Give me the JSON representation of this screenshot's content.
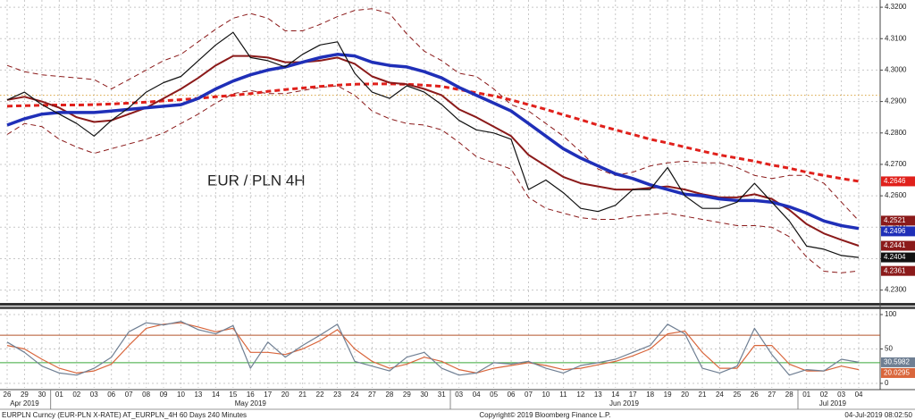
{
  "chart_data": [
    {
      "type": "line",
      "title": "EUR / PLN 4H",
      "title_color": "#c0282d",
      "categories": [
        "26",
        "29",
        "30",
        "01",
        "02",
        "03",
        "06",
        "07",
        "08",
        "09",
        "10",
        "13",
        "14",
        "15",
        "16",
        "17",
        "20",
        "21",
        "22",
        "23",
        "24",
        "27",
        "28",
        "29",
        "30",
        "31",
        "03",
        "04",
        "05",
        "06",
        "07",
        "10",
        "11",
        "12",
        "13",
        "14",
        "17",
        "18",
        "19",
        "20",
        "21",
        "24",
        "25",
        "26",
        "27",
        "28",
        "01",
        "02",
        "03",
        "04"
      ],
      "month_groups": [
        {
          "name": "Apr 2019",
          "count": 3
        },
        {
          "name": "May 2019",
          "count": 23
        },
        {
          "name": "Jun 2019",
          "count": 20
        },
        {
          "name": "Jul 2019",
          "count": 4
        }
      ],
      "ylim": [
        4.2262,
        4.3223
      ],
      "yticks": [
        {
          "value": 4.23,
          "label": "4.2300"
        },
        {
          "value": 4.24,
          "label": "4.2400"
        },
        {
          "value": 4.25,
          "label": "4.2500"
        },
        {
          "value": 4.26,
          "label": "4.2600"
        },
        {
          "value": 4.27,
          "label": "4.2700"
        },
        {
          "value": 4.28,
          "label": "4.2800"
        },
        {
          "value": 4.29,
          "label": "4.2900"
        },
        {
          "value": 4.3,
          "label": "4.3000"
        },
        {
          "value": 4.31,
          "label": "4.3100"
        },
        {
          "value": 4.32,
          "label": "4.3200"
        }
      ],
      "grid": true,
      "hlines": [
        {
          "value": 4.292,
          "color": "#d9a441",
          "style": "dotted"
        }
      ],
      "series": [
        {
          "color": "#8b1a1a",
          "width": 1,
          "style": "dashed",
          "values": [
            4.3015,
            4.2995,
            4.2985,
            4.298,
            4.2975,
            4.297,
            4.294,
            4.297,
            4.3,
            4.303,
            4.305,
            4.309,
            4.313,
            4.3165,
            4.318,
            4.3165,
            4.3125,
            4.3125,
            4.3145,
            4.317,
            4.319,
            4.3195,
            4.318,
            4.3115,
            4.306,
            4.303,
            4.299,
            4.298,
            4.294,
            4.289,
            4.287,
            4.283,
            4.279,
            4.274,
            4.2685,
            4.2665,
            4.2675,
            4.2695,
            4.2705,
            4.271,
            4.2705,
            4.2705,
            4.269,
            4.2665,
            4.2655,
            4.2665,
            4.2665,
            4.264,
            4.258,
            4.2521
          ]
        },
        {
          "color": "#8b1a1a",
          "width": 1,
          "style": "dashed",
          "values": [
            4.2795,
            4.283,
            4.282,
            4.278,
            4.2755,
            4.2735,
            4.275,
            4.2765,
            4.278,
            4.28,
            4.283,
            4.286,
            4.2895,
            4.2925,
            4.2935,
            4.2925,
            4.2925,
            4.2935,
            4.2945,
            4.295,
            4.292,
            4.287,
            4.2845,
            4.283,
            4.2825,
            4.281,
            4.277,
            4.2725,
            4.2705,
            4.2685,
            4.2595,
            4.256,
            4.2545,
            4.253,
            4.2525,
            4.2525,
            4.2535,
            4.254,
            4.2545,
            4.2535,
            4.2525,
            4.2515,
            4.2505,
            4.2505,
            4.25,
            4.247,
            4.2405,
            4.236,
            4.2355,
            4.2361
          ]
        },
        {
          "color": "#e0201b",
          "width": 3,
          "style": "dashed",
          "values": [
            4.2885,
            4.2887,
            4.2888,
            4.2889,
            4.2889,
            4.289,
            4.2892,
            4.2895,
            4.2898,
            4.2902,
            4.2906,
            4.291,
            4.2915,
            4.292,
            4.2925,
            4.2932,
            4.2938,
            4.2943,
            4.2948,
            4.2952,
            4.2955,
            4.2956,
            4.2956,
            4.2955,
            4.2952,
            4.2948,
            4.2938,
            4.2928,
            4.2918,
            4.2905,
            4.289,
            4.2875,
            4.2858,
            4.2842,
            4.2825,
            4.281,
            4.2795,
            4.278,
            4.2768,
            4.2755,
            4.2742,
            4.273,
            4.272,
            4.271,
            4.2698,
            4.2688,
            4.2675,
            4.2665,
            4.2655,
            4.2646
          ]
        },
        {
          "color": "#8b1a1a",
          "width": 2,
          "style": "solid",
          "values": [
            4.2905,
            4.2915,
            4.29,
            4.288,
            4.285,
            4.2835,
            4.284,
            4.286,
            4.288,
            4.291,
            4.294,
            4.2975,
            4.3015,
            4.3045,
            4.3045,
            4.304,
            4.3025,
            4.3025,
            4.303,
            4.304,
            4.302,
            4.298,
            4.296,
            4.2955,
            4.294,
            4.292,
            4.2875,
            4.285,
            4.282,
            4.279,
            4.273,
            4.2695,
            4.266,
            4.264,
            4.263,
            4.262,
            4.262,
            4.2625,
            4.263,
            4.262,
            4.2605,
            4.2595,
            4.2595,
            4.2605,
            4.259,
            4.2555,
            4.251,
            4.248,
            4.246,
            4.2441
          ]
        },
        {
          "color": "#1f2fb8",
          "width": 3.5,
          "style": "solid",
          "values": [
            4.2825,
            4.2845,
            4.286,
            4.2865,
            4.2865,
            4.2865,
            4.287,
            4.2875,
            4.288,
            4.2885,
            4.289,
            4.291,
            4.294,
            4.2965,
            4.2985,
            4.3,
            4.301,
            4.3025,
            4.304,
            4.305,
            4.3045,
            4.3025,
            4.3015,
            4.301,
            4.2995,
            4.2975,
            4.2945,
            4.292,
            4.2895,
            4.287,
            4.283,
            4.279,
            4.275,
            4.272,
            4.2695,
            4.267,
            4.2655,
            4.2635,
            4.262,
            4.2605,
            4.26,
            4.259,
            4.2585,
            4.2585,
            4.258,
            4.2565,
            4.2545,
            4.252,
            4.2505,
            4.2496
          ]
        },
        {
          "color": "#111111",
          "width": 1.2,
          "style": "solid",
          "values": [
            4.2905,
            4.293,
            4.289,
            4.286,
            4.283,
            4.279,
            4.284,
            4.288,
            4.293,
            4.296,
            4.298,
            4.303,
            4.308,
            4.312,
            4.304,
            4.303,
            4.301,
            4.305,
            4.308,
            4.309,
            4.299,
            4.293,
            4.291,
            4.295,
            4.293,
            4.289,
            4.284,
            4.281,
            4.28,
            4.278,
            4.262,
            4.265,
            4.261,
            4.256,
            4.255,
            4.257,
            4.262,
            4.262,
            4.269,
            4.26,
            4.256,
            4.256,
            4.258,
            4.264,
            4.258,
            4.252,
            4.244,
            4.243,
            4.241,
            4.2404
          ]
        }
      ]
    },
    {
      "type": "line",
      "ylim": [
        -6.5,
        105.2
      ],
      "yticks": [
        0,
        50,
        100
      ],
      "grid": true,
      "hlines": [
        {
          "value": 70,
          "color": "#b5532a",
          "style": "solid"
        },
        {
          "value": 30,
          "color": "#3aa83a",
          "style": "solid"
        }
      ],
      "series": [
        {
          "color": "#d9663c",
          "width": 1.2,
          "style": "solid",
          "values": [
            55,
            50,
            35,
            22,
            15,
            18,
            28,
            55,
            80,
            86,
            88,
            82,
            75,
            80,
            45,
            45,
            42,
            50,
            62,
            78,
            50,
            32,
            22,
            28,
            38,
            32,
            20,
            15,
            22,
            26,
            30,
            26,
            20,
            22,
            27,
            32,
            40,
            50,
            72,
            76,
            45,
            22,
            22,
            55,
            55,
            28,
            18,
            18,
            25,
            20.0295
          ]
        },
        {
          "color": "#6f7f93",
          "width": 1.2,
          "style": "solid",
          "values": [
            60,
            45,
            25,
            15,
            12,
            22,
            38,
            75,
            88,
            85,
            90,
            78,
            72,
            84,
            22,
            60,
            38,
            55,
            70,
            86,
            32,
            25,
            18,
            38,
            45,
            22,
            12,
            15,
            30,
            28,
            32,
            22,
            15,
            26,
            30,
            35,
            45,
            55,
            86,
            72,
            22,
            15,
            25,
            80,
            42,
            12,
            20,
            18,
            35,
            30.5982
          ]
        }
      ]
    }
  ],
  "footer": {
    "left": "EURPLN Curncy (EUR-PLN X-RATE) AT_EURPLN_4H 60 Days 240 Minutes",
    "center": "Copyright© 2019 Bloomberg Finance L.P.",
    "right": "04-Jul-2019 08:02:50"
  }
}
